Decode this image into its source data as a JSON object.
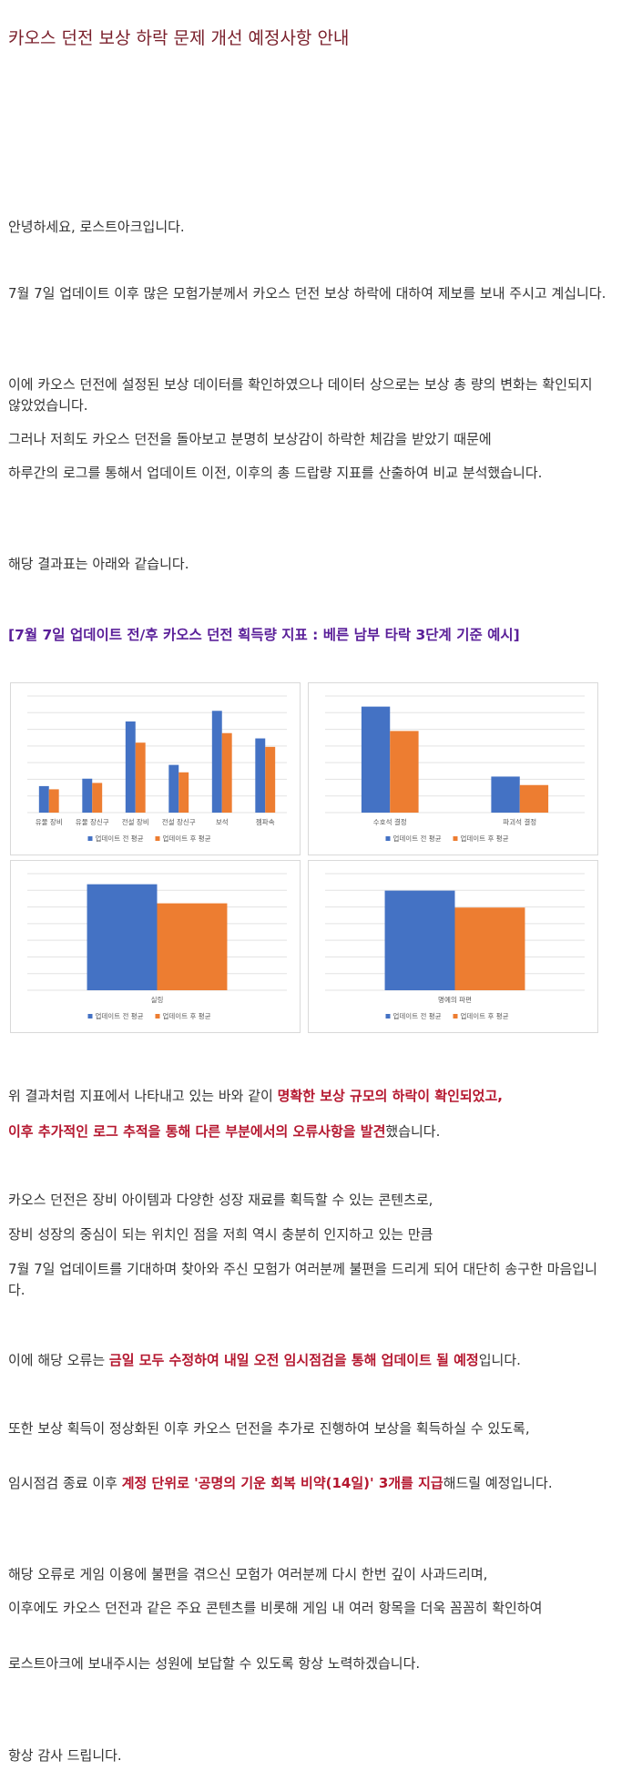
{
  "title": "카오스 던전 보상 하락 문제 개선 예정사항 안내",
  "paragraphs": {
    "p1": "안녕하세요, 로스트아크입니다.",
    "p2": "7월 7일 업데이트 이후 많은 모험가분께서 카오스 던전 보상 하락에 대하여 제보를 보내 주시고 계십니다.",
    "p3": "이에 카오스 던전에 설정된 보상 데이터를 확인하였으나 데이터 상으로는 보상 총 량의 변화는 확인되지 않았었습니다.",
    "p4": "그러나 저희도 카오스 던전을 돌아보고 분명히 보상감이 하락한 체감을 받았기 때문에",
    "p5": "하루간의 로그를 통해서 업데이트 이전, 이후의 총 드랍량 지표를 산출하여 비교 분석했습니다.",
    "p6": "해당 결과표는 아래와 같습니다.",
    "subtitle": "[7월 7일 업데이트 전/후 카오스 던전 획득량 지표 : 베른 남부 타락 3단계 기준 예시]",
    "p7a": "위 결과처럼 지표에서 나타내고 있는 바와 같이 ",
    "p7b": "명확한 보상 규모의 하락이 확인되었고,",
    "p8a": "이후 추가적인 로그 추적을 통해 다른 부분에서의 오류사항을 발견",
    "p8b": "했습니다.",
    "p9": "카오스 던전은 장비 아이템과 다양한 성장 재료를 획득할 수 있는 콘텐츠로,",
    "p10": "장비 성장의 중심이 되는 위치인 점을 저희 역시 충분히 인지하고 있는 만큼",
    "p11": "7월 7일 업데이트를 기대하며 찾아와 주신 모험가 여러분께 불편을 드리게 되어 대단히 송구한 마음입니다.",
    "p12a": "이에 해당 오류는 ",
    "p12b": "금일 모두 수정하여 내일 오전 임시점검을 통해 업데이트 될 예정",
    "p12c": "입니다.",
    "p13": "또한 보상 획득이 정상화된 이후 카오스 던전을 추가로 진행하여 보상을 획득하실 수 있도록,",
    "p14a": "임시점검 종료 이후 ",
    "p14b": "계정 단위로 '공명의 기운 회복 비약(14일)' 3개를 지급",
    "p14c": "해드릴 예정입니다.",
    "p15": "해당 오류로 게임 이용에 불편을 겪으신 모험가 여러분께 다시 한번 깊이 사과드리며,",
    "p16": "이후에도 카오스 던전과 같은 주요 콘텐츠를 비롯해 게임 내 여러 항목을 더욱 꼼꼼히 확인하여",
    "p17": "로스트아크에 보내주시는 성원에 보답할 수 있도록 항상 노력하겠습니다.",
    "p18": "항상 감사 드립니다."
  },
  "colors": {
    "before": "#4472c4",
    "after": "#ed7d31",
    "title": "#7a1f2b",
    "highlight": "#b5172f",
    "subtitle": "#5a1f99"
  },
  "chart_data": [
    {
      "type": "bar",
      "categories": [
        "유물 장비",
        "유물 장신구",
        "전설 장비",
        "전설 장신구",
        "보석",
        "젬파속"
      ],
      "series": [
        {
          "name": "업데이트 전 평균",
          "values": [
            25,
            32,
            86,
            45,
            96,
            70
          ]
        },
        {
          "name": "업데이트 후 평균",
          "values": [
            22,
            28,
            66,
            38,
            75,
            62
          ]
        }
      ],
      "ylim": [
        0,
        110
      ],
      "grid": true,
      "legend": "bottom"
    },
    {
      "type": "bar",
      "categories": [
        "수호석 결정",
        "파괴석 결정"
      ],
      "series": [
        {
          "name": "업데이트 전 평균",
          "values": [
            100,
            34
          ]
        },
        {
          "name": "업데이트 후 평균",
          "values": [
            77,
            26
          ]
        }
      ],
      "ylim": [
        0,
        110
      ],
      "grid": true,
      "legend": "bottom"
    },
    {
      "type": "bar",
      "categories": [
        "실링"
      ],
      "series": [
        {
          "name": "업데이트 전 평균",
          "values": [
            100
          ]
        },
        {
          "name": "업데이트 후 평균",
          "values": [
            82
          ]
        }
      ],
      "ylim": [
        0,
        110
      ],
      "grid": true,
      "legend": "bottom"
    },
    {
      "type": "bar",
      "categories": [
        "명예의 파편"
      ],
      "series": [
        {
          "name": "업데이트 전 평균",
          "values": [
            94
          ]
        },
        {
          "name": "업데이트 후 평균",
          "values": [
            78
          ]
        }
      ],
      "ylim": [
        0,
        110
      ],
      "grid": true,
      "legend": "bottom"
    }
  ]
}
